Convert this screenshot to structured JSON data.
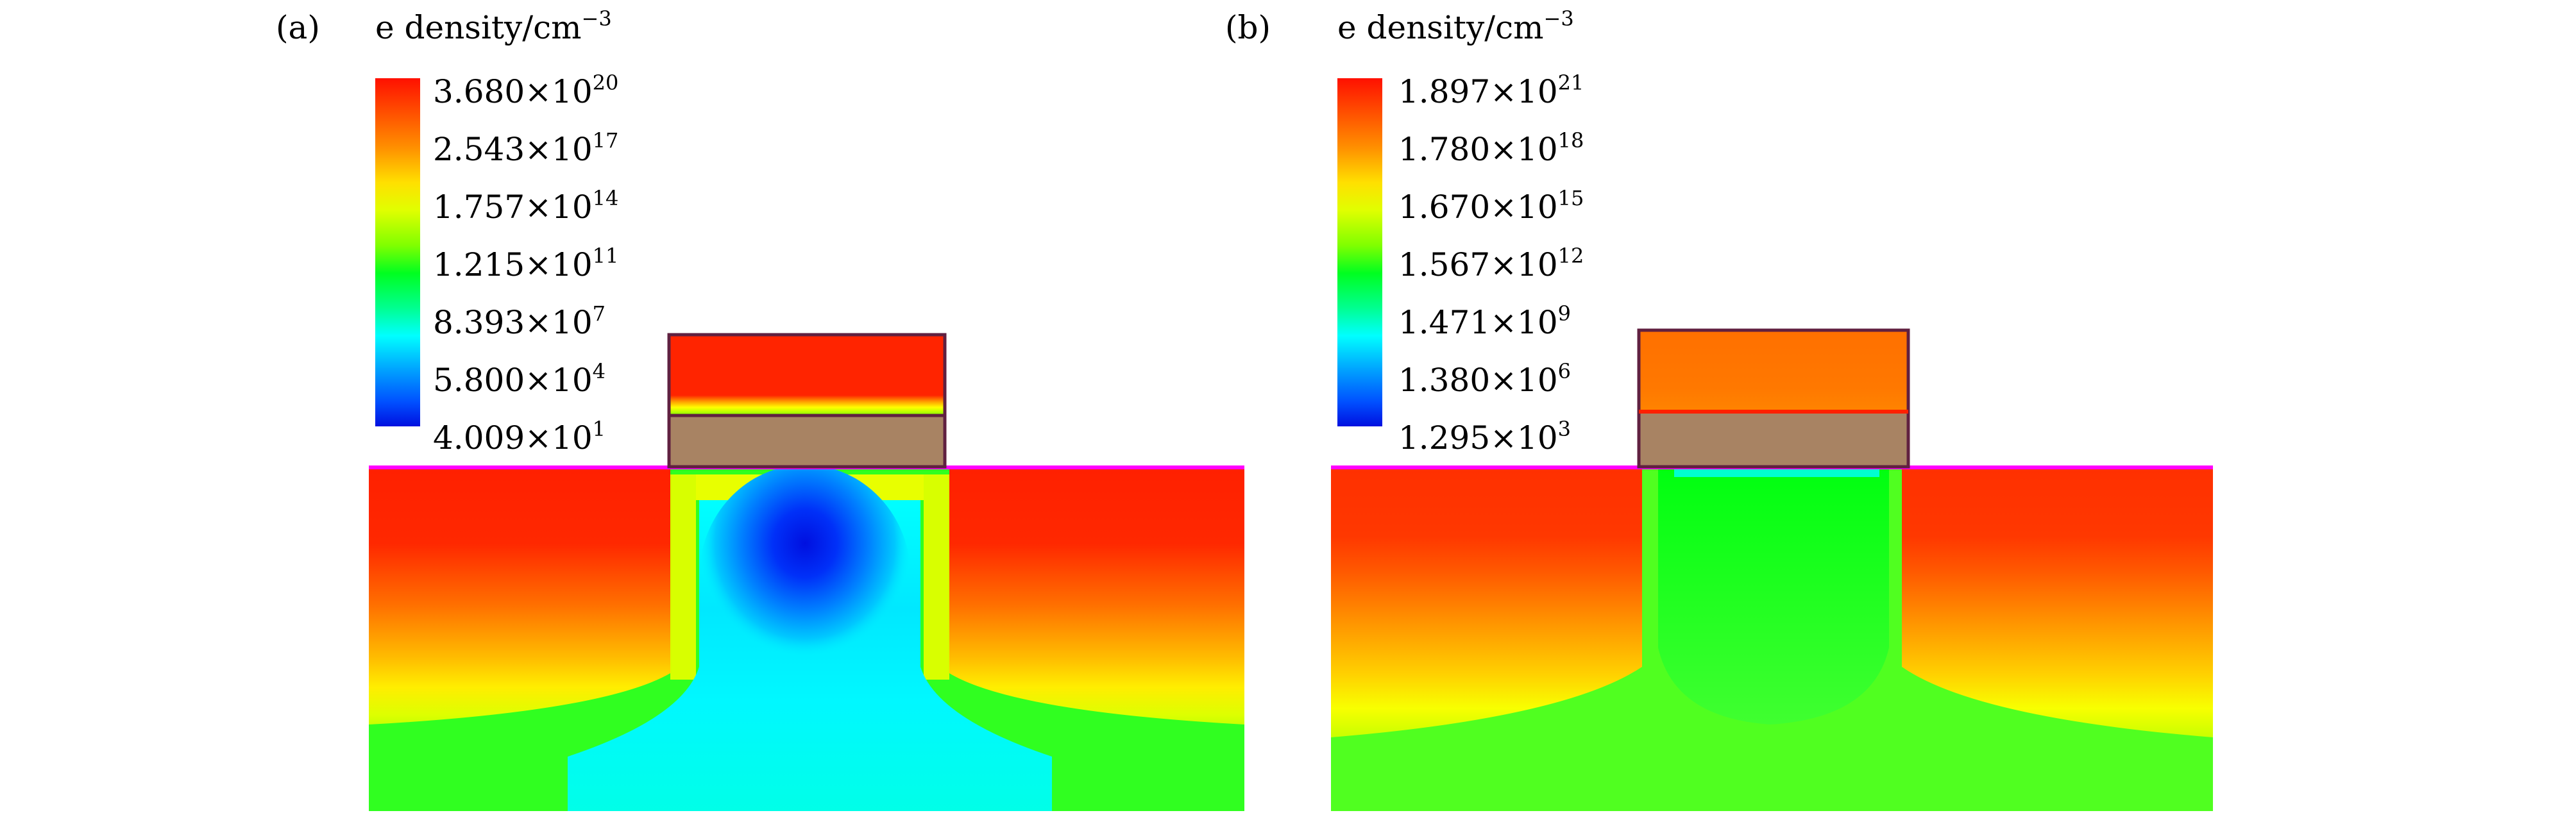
{
  "panels": [
    {
      "id": "a",
      "label": "(a)",
      "legend": {
        "title": "e density/cm",
        "title_exponent": "−3",
        "ticks": [
          {
            "mantissa": "3.680",
            "exponent": "20"
          },
          {
            "mantissa": "2.543",
            "exponent": "17"
          },
          {
            "mantissa": "1.757",
            "exponent": "14"
          },
          {
            "mantissa": "1.215",
            "exponent": "11"
          },
          {
            "mantissa": "8.393",
            "exponent": "7"
          },
          {
            "mantissa": "5.800",
            "exponent": "4"
          },
          {
            "mantissa": "4.009",
            "exponent": "1"
          }
        ]
      }
    },
    {
      "id": "b",
      "label": "(b)",
      "legend": {
        "title": "e density/cm",
        "title_exponent": "−3",
        "ticks": [
          {
            "mantissa": "1.897",
            "exponent": "21"
          },
          {
            "mantissa": "1.780",
            "exponent": "18"
          },
          {
            "mantissa": "1.670",
            "exponent": "15"
          },
          {
            "mantissa": "1.567",
            "exponent": "12"
          },
          {
            "mantissa": "1.471",
            "exponent": "9"
          },
          {
            "mantissa": "1.380",
            "exponent": "6"
          },
          {
            "mantissa": "1.295",
            "exponent": "3"
          }
        ]
      }
    }
  ],
  "times_sign": "×10",
  "colors": {
    "red": "#ff2000",
    "orange_red": "#ff5000",
    "orange": "#ff8000",
    "orange_yellow": "#ffb000",
    "yellow": "#ffff00",
    "yellow_green": "#c0ff00",
    "green": "#00ff10",
    "green_light": "#40ff40",
    "cyan": "#00ffff",
    "sky": "#00c0ff",
    "blue": "#0040ff",
    "deep_blue": "#0010e0",
    "oxide": "#a88363",
    "outline": "#602040",
    "surface_line": "#ff00ff"
  }
}
